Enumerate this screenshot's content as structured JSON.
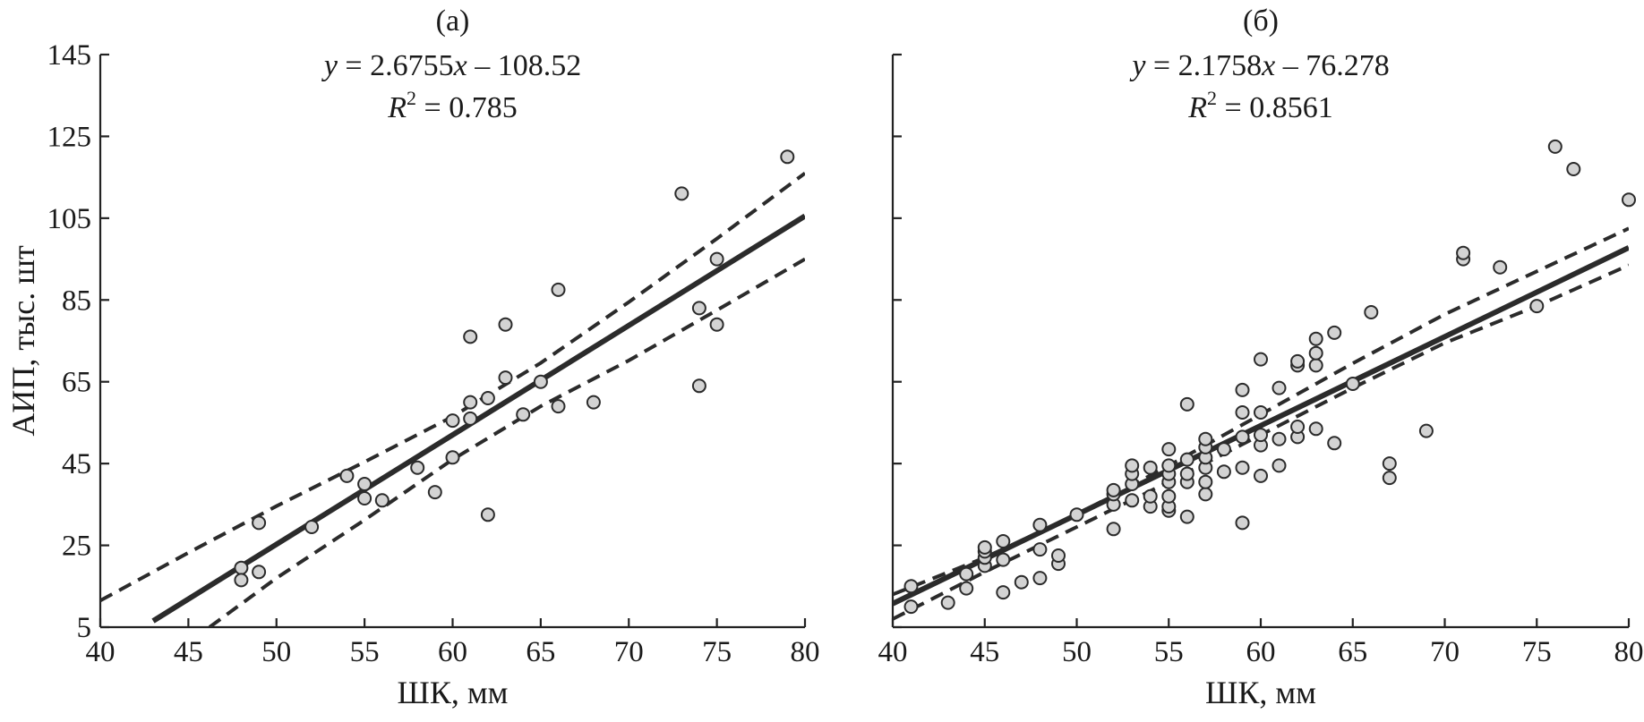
{
  "chart_data": [
    {
      "type": "scatter",
      "panel_label": "(а)",
      "equation_parts": {
        "y": "y",
        "eq": " = 2.6755",
        "x": "x",
        "rest": " – 108.52"
      },
      "r2_parts": {
        "r": "R",
        "sup": "2",
        "rest": " = 0.785"
      },
      "xlabel": "ШК, мм",
      "ylabel": "АИП, тыс. шт",
      "xlim": [
        40,
        80
      ],
      "ylim": [
        5,
        145
      ],
      "xticks": [
        40,
        45,
        50,
        55,
        60,
        65,
        70,
        75,
        80
      ],
      "yticks": [
        5,
        25,
        45,
        65,
        85,
        105,
        125,
        145
      ],
      "show_y_tick_labels": true,
      "fit": {
        "slope": 2.6755,
        "intercept": -108.52,
        "x_range": [
          43,
          80
        ]
      },
      "confidence_upper": [
        [
          40,
          11.5
        ],
        [
          45,
          23.2
        ],
        [
          50,
          34.6
        ],
        [
          55,
          45.4
        ],
        [
          60,
          56.5
        ],
        [
          65,
          69.6
        ],
        [
          70,
          84.5
        ],
        [
          75,
          100.0
        ],
        [
          80,
          116.0
        ]
      ],
      "confidence_lower": [
        [
          46.2,
          5
        ],
        [
          50,
          17.0
        ],
        [
          55,
          31.2
        ],
        [
          60,
          46.0
        ],
        [
          65,
          59.0
        ],
        [
          70,
          70.2
        ],
        [
          75,
          82.5
        ],
        [
          80,
          95.0
        ]
      ],
      "points": [
        [
          48,
          19.5
        ],
        [
          48,
          16.5
        ],
        [
          49,
          18.5
        ],
        [
          49,
          30.5
        ],
        [
          52,
          29.5
        ],
        [
          54,
          42
        ],
        [
          55,
          40
        ],
        [
          55,
          36.5
        ],
        [
          56,
          36
        ],
        [
          58,
          44
        ],
        [
          59,
          38
        ],
        [
          60,
          46.5
        ],
        [
          60,
          55.5
        ],
        [
          61,
          56
        ],
        [
          61,
          60
        ],
        [
          61,
          76
        ],
        [
          62,
          61
        ],
        [
          62,
          32.5
        ],
        [
          63,
          66
        ],
        [
          63,
          79
        ],
        [
          64,
          57
        ],
        [
          65,
          65
        ],
        [
          66,
          59
        ],
        [
          66,
          87.5
        ],
        [
          68,
          60
        ],
        [
          73,
          111
        ],
        [
          74,
          83
        ],
        [
          74,
          64
        ],
        [
          75,
          79
        ],
        [
          75,
          95
        ],
        [
          79,
          120
        ]
      ]
    },
    {
      "type": "scatter",
      "panel_label": "(б)",
      "equation_parts": {
        "y": "y",
        "eq": " = 2.1758",
        "x": "x",
        "rest": " – 76.278"
      },
      "r2_parts": {
        "r": "R",
        "sup": "2",
        "rest": " = 0.8561"
      },
      "xlabel": "ШК, мм",
      "ylabel": "",
      "xlim": [
        40,
        80
      ],
      "ylim": [
        5,
        145
      ],
      "xticks": [
        40,
        45,
        50,
        55,
        60,
        65,
        70,
        75,
        80
      ],
      "yticks": [
        5,
        25,
        45,
        65,
        85,
        105,
        125,
        145
      ],
      "show_y_tick_labels": false,
      "fit": {
        "slope": 2.1758,
        "intercept": -76.278,
        "x_range": [
          40,
          80
        ]
      },
      "confidence_upper": [
        [
          40,
          13
        ],
        [
          45,
          22
        ],
        [
          50,
          32.5
        ],
        [
          55,
          44.5
        ],
        [
          60,
          57
        ],
        [
          65,
          69.5
        ],
        [
          70,
          81.5
        ],
        [
          75,
          92
        ],
        [
          80,
          102.5
        ]
      ],
      "confidence_lower": [
        [
          40,
          7
        ],
        [
          45,
          18.5
        ],
        [
          50,
          29.5
        ],
        [
          55,
          40.5
        ],
        [
          60,
          52
        ],
        [
          65,
          63.5
        ],
        [
          70,
          74.5
        ],
        [
          75,
          83.5
        ],
        [
          80,
          93.5
        ]
      ],
      "points": [
        [
          41,
          15
        ],
        [
          41,
          10
        ],
        [
          43,
          11
        ],
        [
          44,
          14.5
        ],
        [
          44,
          18
        ],
        [
          45,
          20
        ],
        [
          45,
          22
        ],
        [
          45,
          23.5
        ],
        [
          45,
          24.5
        ],
        [
          46,
          13.5
        ],
        [
          46,
          21.5
        ],
        [
          46,
          26
        ],
        [
          47,
          16
        ],
        [
          48,
          17
        ],
        [
          48,
          24
        ],
        [
          48,
          30
        ],
        [
          49,
          20.5
        ],
        [
          49,
          22.5
        ],
        [
          50,
          32.5
        ],
        [
          52,
          29
        ],
        [
          52,
          35
        ],
        [
          52,
          37.5
        ],
        [
          52,
          38.5
        ],
        [
          53,
          36
        ],
        [
          53,
          40
        ],
        [
          53,
          42.5
        ],
        [
          53,
          44.5
        ],
        [
          54,
          34.5
        ],
        [
          54,
          37
        ],
        [
          54,
          44
        ],
        [
          55,
          33.5
        ],
        [
          55,
          34.5
        ],
        [
          55,
          37
        ],
        [
          55,
          40.5
        ],
        [
          55,
          42.5
        ],
        [
          55,
          44.5
        ],
        [
          55,
          48.5
        ],
        [
          56,
          32
        ],
        [
          56,
          40.5
        ],
        [
          56,
          42.5
        ],
        [
          56,
          46
        ],
        [
          56,
          59.5
        ],
        [
          57,
          37.5
        ],
        [
          57,
          40.5
        ],
        [
          57,
          44
        ],
        [
          57,
          46.5
        ],
        [
          57,
          49
        ],
        [
          57,
          51
        ],
        [
          58,
          43
        ],
        [
          58,
          48.5
        ],
        [
          59,
          30.5
        ],
        [
          59,
          44
        ],
        [
          59,
          51.5
        ],
        [
          59,
          57.5
        ],
        [
          59,
          63
        ],
        [
          60,
          42
        ],
        [
          60,
          49.5
        ],
        [
          60,
          52
        ],
        [
          60,
          57.5
        ],
        [
          60,
          70.5
        ],
        [
          61,
          44.5
        ],
        [
          61,
          51
        ],
        [
          61,
          63.5
        ],
        [
          62,
          51.5
        ],
        [
          62,
          54
        ],
        [
          62,
          69
        ],
        [
          62,
          70
        ],
        [
          63,
          53.5
        ],
        [
          63,
          69
        ],
        [
          63,
          72
        ],
        [
          63,
          75.5
        ],
        [
          64,
          50
        ],
        [
          64,
          77
        ],
        [
          65,
          64.5
        ],
        [
          66,
          82
        ],
        [
          67,
          41.5
        ],
        [
          67,
          45
        ],
        [
          69,
          53
        ],
        [
          71,
          95
        ],
        [
          71,
          96.5
        ],
        [
          73,
          93
        ],
        [
          75,
          83.5
        ],
        [
          76,
          122.5
        ],
        [
          77,
          117
        ],
        [
          80,
          109.5
        ]
      ]
    }
  ]
}
